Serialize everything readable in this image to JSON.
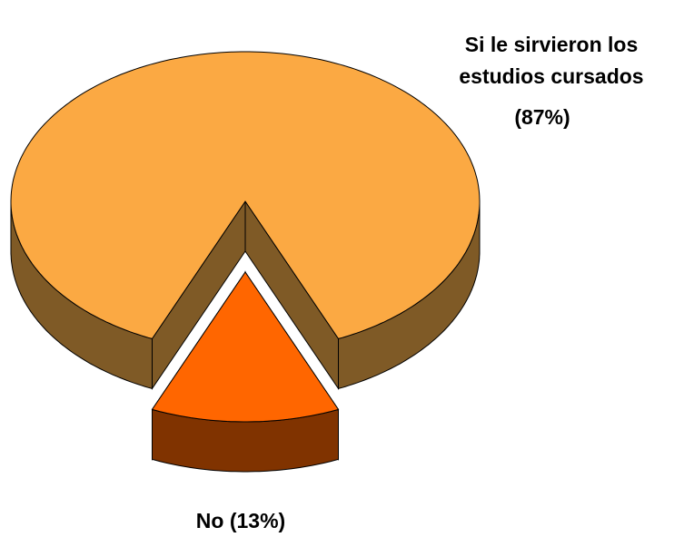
{
  "chart_data": {
    "type": "pie",
    "categories": [
      "Si le sirvieron los estudios cursados",
      "No"
    ],
    "values": [
      87,
      13
    ],
    "value_labels": [
      "(87%)",
      "(13%)"
    ],
    "colors": [
      "#FBA943",
      "#FF6600"
    ],
    "side_colors": [
      "#7F5A26",
      "#803300"
    ]
  }
}
